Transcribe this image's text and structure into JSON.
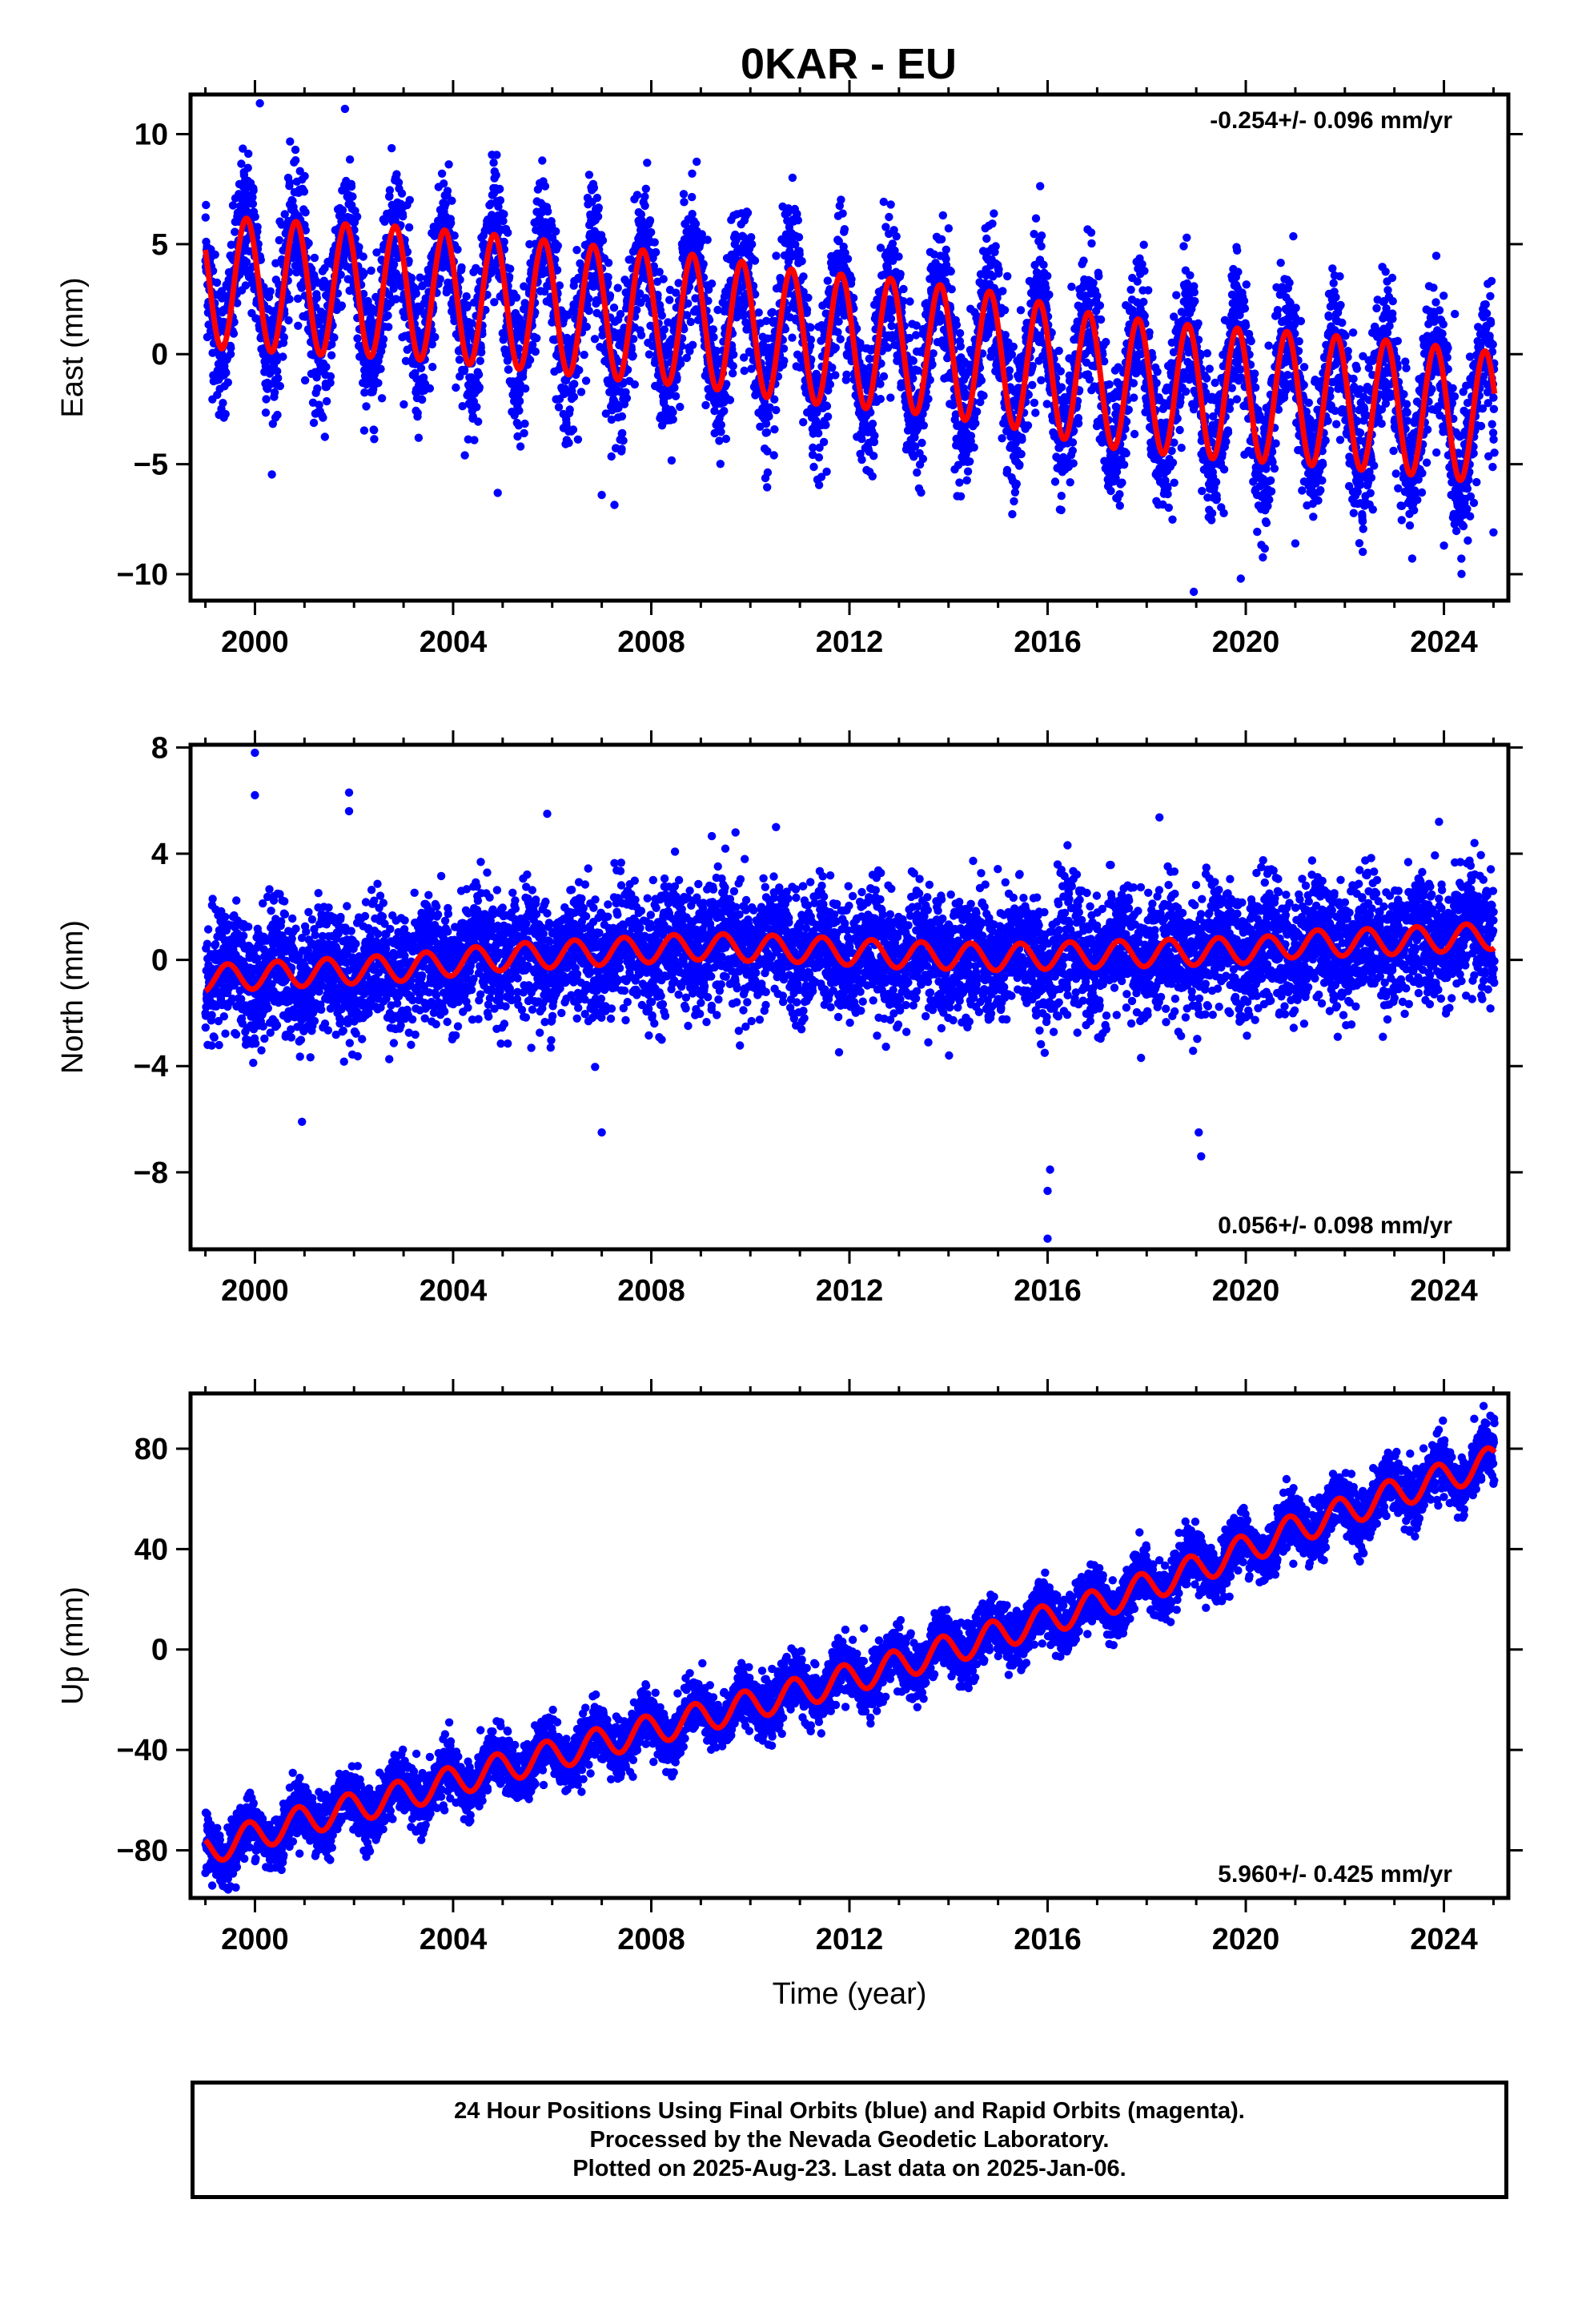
{
  "title": "0KAR - EU",
  "footer": {
    "line1": "24 Hour Positions Using Final Orbits (blue) and Rapid Orbits (magenta).",
    "line2": "Processed by the Nevada Geodetic Laboratory.",
    "line3": "Plotted on 2025-Aug-23. Last data on 2025-Jan-06."
  },
  "colors": {
    "final_orbits": "#0000ff",
    "model_fit": "#ff0000",
    "rapid_orbits": "#ff00ff"
  },
  "chart_data": [
    {
      "type": "scatter",
      "ylabel": "East (mm)",
      "xlabel": "",
      "xlim": [
        1998.7,
        2025.3
      ],
      "ylim": [
        -11.2,
        11.8
      ],
      "xticks": [
        2000,
        2004,
        2008,
        2012,
        2016,
        2020,
        2024
      ],
      "xtick_labels": [
        "2000",
        "2004",
        "2008",
        "2012",
        "2016",
        "2020",
        "2024"
      ],
      "yticks": [
        -10,
        -5,
        0,
        5,
        10
      ],
      "ytick_labels": [
        "−10",
        "−5",
        "0",
        "5",
        "10"
      ],
      "rate_label": "-0.254+/- 0.096 mm/yr",
      "rate_position": "top-right",
      "data_start": 1999.0,
      "data_end": 2025.02,
      "x_samples": [
        1999.0,
        2001.0,
        2003.0,
        2005.0,
        2007.0,
        2009.0,
        2011.0,
        2013.0,
        2015.0,
        2017.0,
        2019.0,
        2021.0,
        2023.0,
        2025.0
      ],
      "trend": [
        3.3,
        3.0,
        2.8,
        2.4,
        1.9,
        1.5,
        0.8,
        0.4,
        -0.2,
        -1.2,
        -1.7,
        -2.0,
        -2.4,
        -2.9
      ],
      "seasonal_amplitude": 3.0,
      "seasonal_phase": 0.58,
      "scatter_sd": 1.6,
      "outliers": [
        [
          2000.1,
          11.4
        ],
        [
          2004.9,
          -6.3
        ],
        [
          2007.0,
          -6.4
        ],
        [
          2018.95,
          -10.8
        ],
        [
          2019.9,
          -10.2
        ],
        [
          2021.0,
          -8.6
        ],
        [
          2024.0,
          -8.7
        ],
        [
          2025.0,
          -8.1
        ]
      ]
    },
    {
      "type": "scatter",
      "ylabel": "North (mm)",
      "xlabel": "",
      "xlim": [
        1998.7,
        2025.3
      ],
      "ylim": [
        -10.9,
        8.1
      ],
      "xticks": [
        2000,
        2004,
        2008,
        2012,
        2016,
        2020,
        2024
      ],
      "xtick_labels": [
        "2000",
        "2004",
        "2008",
        "2012",
        "2016",
        "2020",
        "2024"
      ],
      "yticks": [
        -8,
        -4,
        0,
        4,
        8
      ],
      "ytick_labels": [
        "−8",
        "−4",
        "0",
        "4",
        "8"
      ],
      "rate_label": "0.056+/- 0.098 mm/yr",
      "rate_position": "bottom-right",
      "data_start": 1999.0,
      "data_end": 2025.02,
      "x_samples": [
        1999.0,
        2001.0,
        2003.0,
        2005.0,
        2007.0,
        2009.0,
        2011.0,
        2013.0,
        2015.0,
        2017.0,
        2019.0,
        2020.5,
        2021.0,
        2023.0,
        2025.0
      ],
      "trend": [
        -0.7,
        -0.5,
        -0.3,
        0.1,
        0.3,
        0.5,
        0.4,
        0.2,
        0.1,
        0.2,
        0.3,
        0.4,
        0.6,
        0.7,
        0.9
      ],
      "seasonal_amplitude": 0.5,
      "seasonal_phase": 0.2,
      "scatter_sd": 1.15,
      "outliers": [
        [
          2000.0,
          7.8
        ],
        [
          2000.0,
          6.2
        ],
        [
          2001.9,
          6.3
        ],
        [
          2001.9,
          5.6
        ],
        [
          2005.9,
          5.5
        ],
        [
          2000.95,
          -6.1
        ],
        [
          2007.0,
          -6.5
        ],
        [
          2016.0,
          -10.5
        ],
        [
          2016.0,
          -8.7
        ],
        [
          2016.05,
          -7.9
        ],
        [
          2019.1,
          -7.4
        ],
        [
          2019.05,
          -6.5
        ],
        [
          2023.9,
          5.2
        ],
        [
          2009.7,
          4.8
        ]
      ]
    },
    {
      "type": "scatter",
      "ylabel": "Up (mm)",
      "xlabel": "Time (year)",
      "xlim": [
        1998.7,
        2025.3
      ],
      "ylim": [
        -99,
        102
      ],
      "xticks": [
        2000,
        2004,
        2008,
        2012,
        2016,
        2020,
        2024
      ],
      "xtick_labels": [
        "2000",
        "2004",
        "2008",
        "2012",
        "2016",
        "2020",
        "2024"
      ],
      "yticks": [
        -80,
        -40,
        0,
        40,
        80
      ],
      "ytick_labels": [
        "−80",
        "−40",
        "0",
        "40",
        "80"
      ],
      "rate_label": "5.960+/- 0.425 mm/yr",
      "rate_position": "bottom-right",
      "data_start": 1999.0,
      "data_end": 2025.02,
      "x_samples": [
        1999.0,
        2001.0,
        2003.0,
        2005.0,
        2007.0,
        2009.0,
        2011.0,
        2013.0,
        2015.0,
        2017.0,
        2019.0,
        2021.0,
        2023.0,
        2025.0
      ],
      "trend": [
        -80,
        -68,
        -58,
        -47,
        -37,
        -27,
        -17,
        -6,
        6,
        18,
        32,
        48,
        62,
        75
      ],
      "seasonal_amplitude": 6.0,
      "seasonal_phase": 0.62,
      "scatter_sd": 5.5,
      "outliers": [
        [
          2024.8,
          97
        ],
        [
          2025.0,
          66
        ],
        [
          1999.3,
          -92
        ]
      ]
    }
  ]
}
